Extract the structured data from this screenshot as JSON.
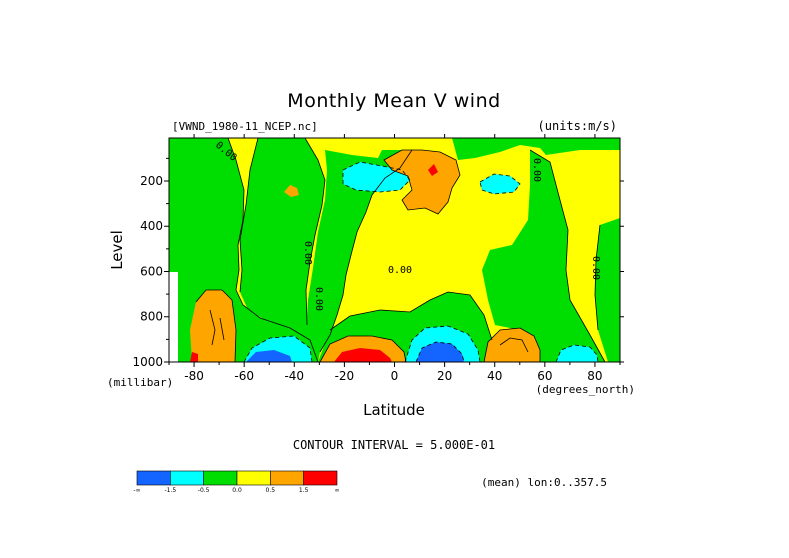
{
  "chart_data": {
    "type": "heatmap",
    "title": "Monthly Mean V wind",
    "dataset_label": "[VWND_1980-11_NCEP.nc]",
    "units_label": "(units:m/s)",
    "xlabel": "Latitude",
    "xunit": "(degrees_north)",
    "ylabel": "Level",
    "yunit": "(millibar)",
    "xlim": [
      -90,
      90
    ],
    "ylim": [
      1000,
      10
    ],
    "x_ticks": [
      -80,
      -60,
      -40,
      -20,
      0,
      20,
      40,
      60,
      80
    ],
    "y_ticks": [
      200,
      400,
      600,
      800,
      1000
    ],
    "contour_interval": "CONTOUR INTERVAL = 5.000E-01",
    "footer_note": "(mean) lon:0..357.5",
    "contour_labels": [
      "0.00",
      "0.00",
      "0.00",
      "0.00",
      "0.00",
      "0.00"
    ],
    "colorbar": {
      "colors": [
        "#1464ff",
        "#00ffff",
        "#00dd00",
        "#ffff00",
        "#ffa500",
        "#ff0000"
      ],
      "labels": [
        "-∞",
        "-1.5",
        "-0.5",
        "0.0",
        "0.5",
        "1.5",
        "∞"
      ]
    },
    "features": [
      {
        "lat": -52,
        "lev": 220,
        "value": 0.6
      },
      {
        "lat": -14,
        "lev": 180,
        "value": -0.8
      },
      {
        "lat": 16,
        "lev": 160,
        "value": 0.9
      },
      {
        "lat": 20,
        "lev": 190,
        "value": 1.6
      },
      {
        "lat": 44,
        "lev": 190,
        "value": -0.9
      },
      {
        "lat": -80,
        "lev": 850,
        "value": 0.9
      },
      {
        "lat": -45,
        "lev": 960,
        "value": -1.4
      },
      {
        "lat": -15,
        "lev": 970,
        "value": 1.6
      },
      {
        "lat": 15,
        "lev": 960,
        "value": -1.8
      },
      {
        "lat": 50,
        "lev": 960,
        "value": 1.0
      },
      {
        "lat": 74,
        "lev": 970,
        "value": -0.9
      }
    ]
  }
}
